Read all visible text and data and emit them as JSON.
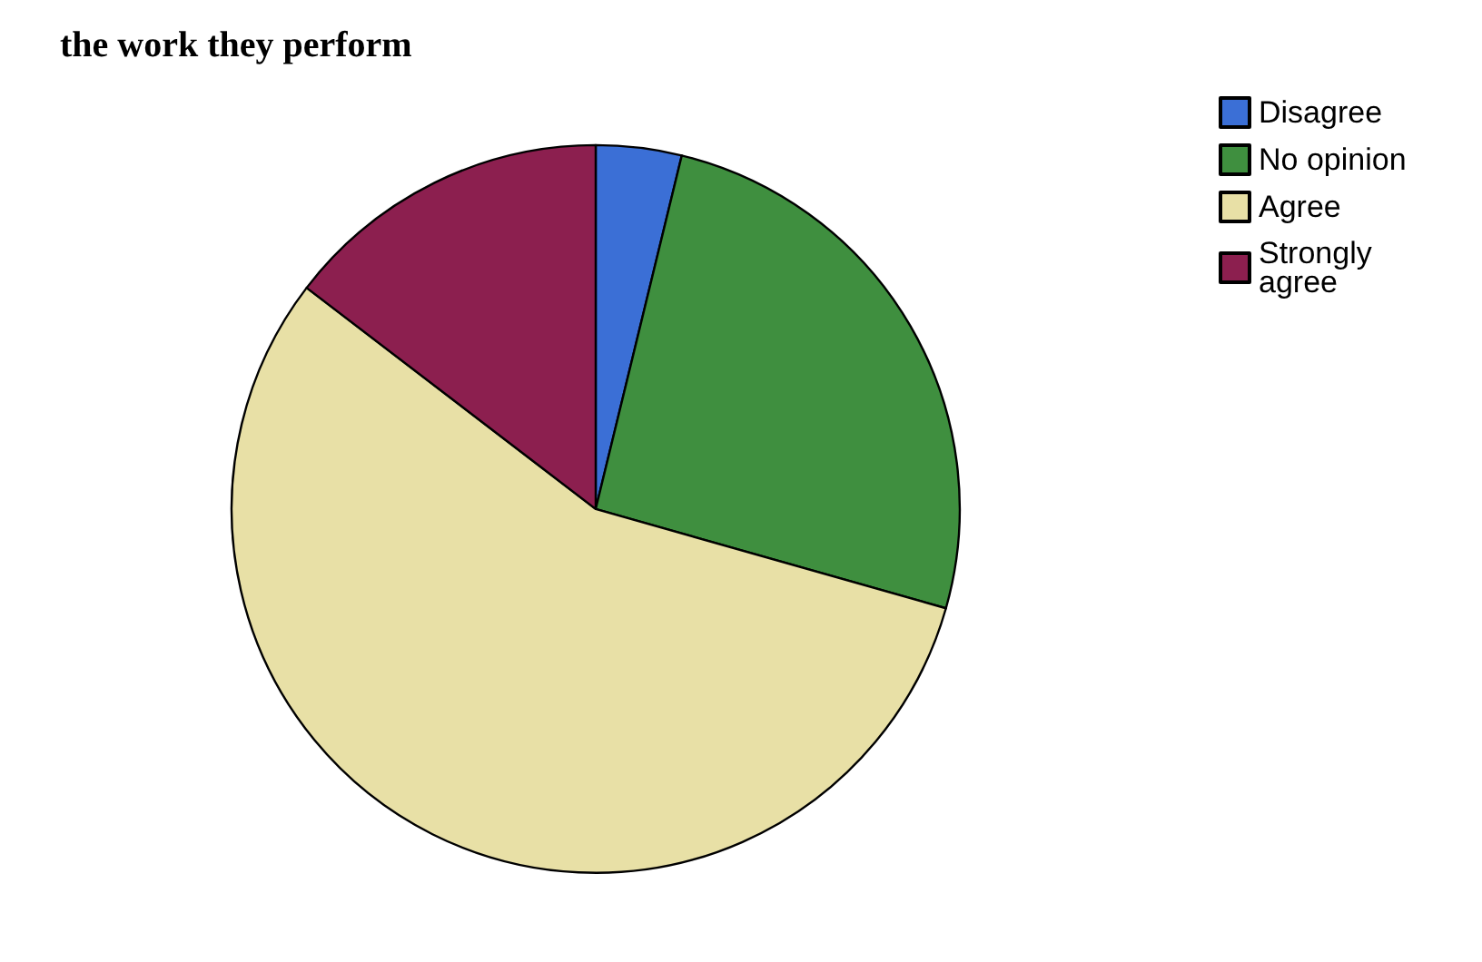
{
  "chart_data": {
    "type": "pie",
    "title": "the work they perform",
    "categories": [
      "Disagree",
      "No opinion",
      "Agree",
      "Strongly agree"
    ],
    "values": [
      3.8,
      25.6,
      56,
      14.6
    ],
    "colors": [
      "#3b6fd6",
      "#3f8f3f",
      "#e8e0a6",
      "#8c1f4f"
    ],
    "legend": "top right"
  }
}
